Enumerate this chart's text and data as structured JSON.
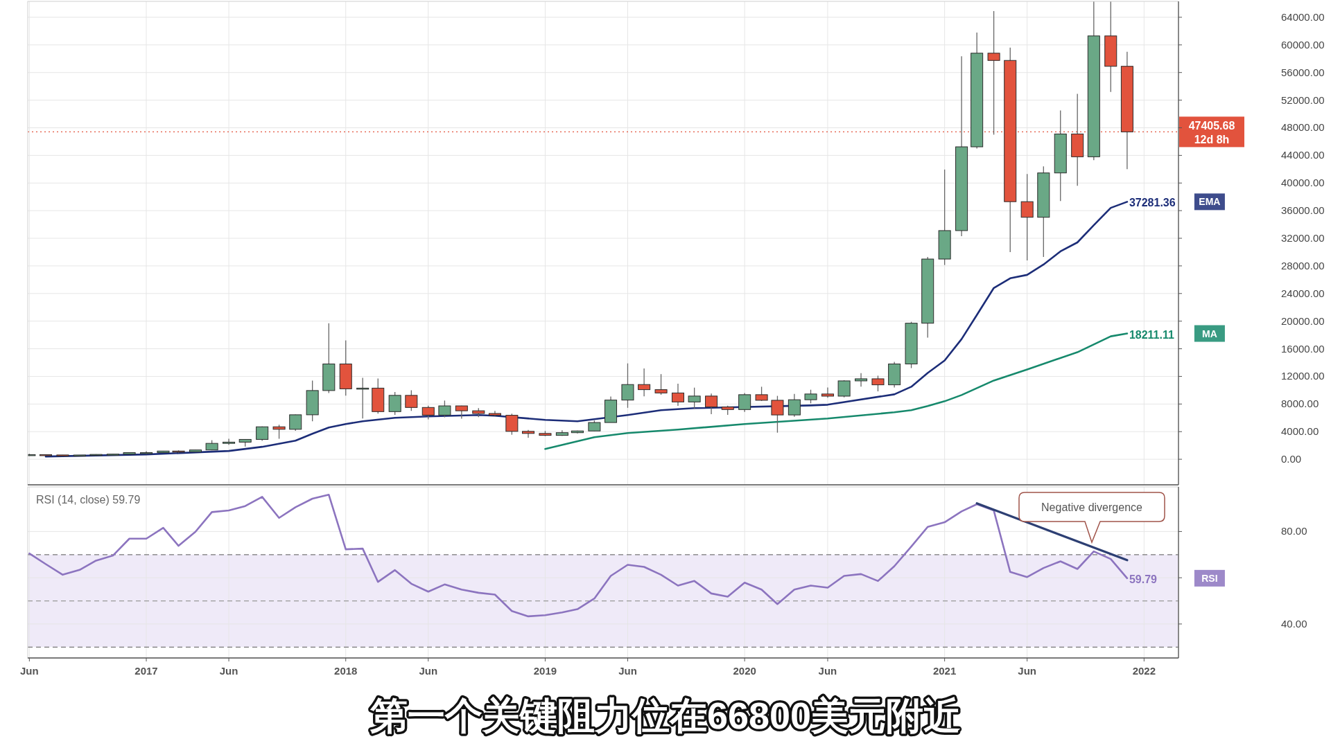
{
  "chart_data": [
    {
      "type": "candlestick",
      "xlim": [
        "2016-05-29",
        "2022-03-05"
      ],
      "ylim": [
        -3700,
        66300
      ],
      "grid": true,
      "tick_labels": "y",
      "xticks": [
        {
          "value": "2016-06",
          "label": null
        },
        {
          "value": "2017-01",
          "label": null
        },
        {
          "value": "2017-06",
          "label": null
        },
        {
          "value": "2018-01",
          "label": null
        },
        {
          "value": "2018-06",
          "label": null
        },
        {
          "value": "2019-01",
          "label": null
        },
        {
          "value": "2019-06",
          "label": null
        },
        {
          "value": "2020-01",
          "label": null
        },
        {
          "value": "2020-06",
          "label": null
        },
        {
          "value": "2021-01",
          "label": null
        },
        {
          "value": "2021-06",
          "label": null
        },
        {
          "value": "2022-01",
          "label": null
        }
      ],
      "yticks": [
        {
          "value": 0,
          "label": "0.00"
        },
        {
          "value": 4000,
          "label": "4000.00"
        },
        {
          "value": 8000,
          "label": "8000.00"
        },
        {
          "value": 12000,
          "label": "12000.00"
        },
        {
          "value": 16000,
          "label": "16000.00"
        },
        {
          "value": 20000,
          "label": "20000.00"
        },
        {
          "value": 24000,
          "label": "24000.00"
        },
        {
          "value": 28000,
          "label": "28000.00"
        },
        {
          "value": 32000,
          "label": "32000.00"
        },
        {
          "value": 36000,
          "label": "36000.00"
        },
        {
          "value": 40000,
          "label": "40000.00"
        },
        {
          "value": 44000,
          "label": "44000.00"
        },
        {
          "value": 48000,
          "label": "48000.00"
        },
        {
          "value": 52000,
          "label": "52000.00"
        },
        {
          "value": 56000,
          "label": "56000.00"
        },
        {
          "value": 60000,
          "label": "60000.00"
        },
        {
          "value": 64000,
          "label": "64000.00"
        }
      ],
      "x": [
        "2016-06",
        "2016-07",
        "2016-08",
        "2016-09",
        "2016-10",
        "2016-11",
        "2016-12",
        "2017-01",
        "2017-02",
        "2017-03",
        "2017-04",
        "2017-05",
        "2017-06",
        "2017-07",
        "2017-08",
        "2017-09",
        "2017-10",
        "2017-11",
        "2017-12",
        "2018-01",
        "2018-02",
        "2018-03",
        "2018-04",
        "2018-05",
        "2018-06",
        "2018-07",
        "2018-08",
        "2018-09",
        "2018-10",
        "2018-11",
        "2018-12",
        "2019-01",
        "2019-02",
        "2019-03",
        "2019-04",
        "2019-05",
        "2019-06",
        "2019-07",
        "2019-08",
        "2019-09",
        "2019-10",
        "2019-11",
        "2019-12",
        "2020-01",
        "2020-02",
        "2020-03",
        "2020-04",
        "2020-05",
        "2020-06",
        "2020-07",
        "2020-08",
        "2020-09",
        "2020-10",
        "2020-11",
        "2020-12",
        "2021-01",
        "2021-02",
        "2021-03",
        "2021-04",
        "2021-05",
        "2021-06",
        "2021-07",
        "2021-08",
        "2021-09",
        "2021-10",
        "2021-11",
        "2021-12"
      ],
      "ohlc": [
        [
          531,
          780,
          500,
          673
        ],
        [
          673,
          704,
          605,
          624
        ],
        [
          624,
          627,
          470,
          573
        ],
        [
          573,
          612,
          568,
          609
        ],
        [
          609,
          731,
          605,
          700
        ],
        [
          700,
          755,
          680,
          742
        ],
        [
          742,
          975,
          740,
          963
        ],
        [
          963,
          1153,
          750,
          970
        ],
        [
          970,
          1200,
          920,
          1190
        ],
        [
          1190,
          1290,
          890,
          1080
        ],
        [
          1080,
          1350,
          1060,
          1348
        ],
        [
          1348,
          2760,
          1300,
          2300
        ],
        [
          2300,
          2980,
          2100,
          2480
        ],
        [
          2480,
          2920,
          1830,
          2875
        ],
        [
          2875,
          4750,
          2670,
          4700
        ],
        [
          4700,
          5000,
          2970,
          4340
        ],
        [
          4340,
          6470,
          4110,
          6440
        ],
        [
          6440,
          11400,
          5500,
          9950
        ],
        [
          9950,
          19700,
          9600,
          13800
        ],
        [
          13800,
          17200,
          9200,
          10200
        ],
        [
          10200,
          11790,
          5900,
          10300
        ],
        [
          10300,
          11700,
          6600,
          6900
        ],
        [
          6900,
          9750,
          6430,
          9250
        ],
        [
          9250,
          9990,
          7000,
          7500
        ],
        [
          7500,
          7760,
          5780,
          6390
        ],
        [
          6390,
          8500,
          6070,
          7730
        ],
        [
          7730,
          7750,
          5880,
          7020
        ],
        [
          7020,
          7410,
          6100,
          6630
        ],
        [
          6630,
          7000,
          6200,
          6370
        ],
        [
          6370,
          6600,
          3550,
          4040
        ],
        [
          4040,
          4250,
          3130,
          3740
        ],
        [
          3740,
          4100,
          3350,
          3460
        ],
        [
          3460,
          4200,
          3400,
          3850
        ],
        [
          3850,
          4140,
          3750,
          4100
        ],
        [
          4100,
          5600,
          4080,
          5320
        ],
        [
          5320,
          9090,
          5320,
          8570
        ],
        [
          8570,
          13880,
          7450,
          10820
        ],
        [
          10820,
          13150,
          9100,
          10080
        ],
        [
          10080,
          12330,
          9330,
          9600
        ],
        [
          9600,
          10950,
          7730,
          8300
        ],
        [
          8300,
          10370,
          7300,
          9150
        ],
        [
          9150,
          9520,
          6520,
          7570
        ],
        [
          7570,
          7750,
          6430,
          7200
        ],
        [
          7200,
          9580,
          6860,
          9350
        ],
        [
          9350,
          10500,
          8440,
          8540
        ],
        [
          8540,
          9180,
          3850,
          6420
        ],
        [
          6420,
          9470,
          6150,
          8620
        ],
        [
          8620,
          10070,
          8100,
          9450
        ],
        [
          9450,
          10380,
          8900,
          9140
        ],
        [
          9140,
          11450,
          8960,
          11350
        ],
        [
          11350,
          12480,
          10520,
          11650
        ],
        [
          11650,
          12100,
          9830,
          10780
        ],
        [
          10780,
          14100,
          10400,
          13800
        ],
        [
          13800,
          19900,
          13200,
          19700
        ],
        [
          19700,
          29300,
          17600,
          28990
        ],
        [
          28990,
          41950,
          28130,
          33110
        ],
        [
          33110,
          58350,
          32300,
          45240
        ],
        [
          45240,
          61790,
          45000,
          58800
        ],
        [
          58800,
          64900,
          47000,
          57750
        ],
        [
          57750,
          59600,
          30000,
          37300
        ],
        [
          37300,
          41300,
          28800,
          35040
        ],
        [
          35040,
          42400,
          29300,
          41460
        ],
        [
          41460,
          50500,
          37400,
          47100
        ],
        [
          47100,
          52900,
          39600,
          43800
        ],
        [
          43800,
          66300,
          43300,
          61300
        ],
        [
          61300,
          66300,
          53200,
          56900
        ],
        [
          56900,
          59000,
          42000,
          47405.68
        ]
      ],
      "colors": [
        "#6aa886",
        "#e2533d",
        "#e2533d",
        "#6aa886",
        "#6aa886",
        "#6aa886",
        "#6aa886",
        "#6aa886",
        "#6aa886",
        "#e2533d",
        "#6aa886",
        "#6aa886",
        "#6aa886",
        "#6aa886",
        "#6aa886",
        "#e2533d",
        "#6aa886",
        "#6aa886",
        "#6aa886",
        "#e2533d",
        "#6aa886",
        "#e2533d",
        "#6aa886",
        "#e2533d",
        "#e2533d",
        "#6aa886",
        "#e2533d",
        "#e2533d",
        "#e2533d",
        "#e2533d",
        "#e2533d",
        "#e2533d",
        "#6aa886",
        "#6aa886",
        "#6aa886",
        "#6aa886",
        "#6aa886",
        "#e2533d",
        "#e2533d",
        "#e2533d",
        "#6aa886",
        "#e2533d",
        "#e2533d",
        "#6aa886",
        "#e2533d",
        "#e2533d",
        "#6aa886",
        "#6aa886",
        "#e2533d",
        "#6aa886",
        "#6aa886",
        "#e2533d",
        "#6aa886",
        "#6aa886",
        "#6aa886",
        "#6aa886",
        "#6aa886",
        "#6aa886",
        "#e2533d",
        "#e2533d",
        "#e2533d",
        "#6aa886",
        "#6aa886",
        "#e2533d",
        "#6aa886",
        "#e2533d",
        "#e2533d"
      ],
      "series": [
        {
          "name": "EMA",
          "type": "line",
          "color": "#1c2d78",
          "x": [
            "2016-07",
            "2017-01",
            "2017-06",
            "2017-08",
            "2017-10",
            "2017-11",
            "2017-12",
            "2018-01",
            "2018-02",
            "2018-04",
            "2018-06",
            "2018-09",
            "2018-10",
            "2019-01",
            "2019-03",
            "2019-04",
            "2019-06",
            "2019-08",
            "2019-10",
            "2020-05",
            "2020-06",
            "2020-10",
            "2020-11",
            "2020-12",
            "2021-01",
            "2021-02",
            "2021-03",
            "2021-04",
            "2021-05",
            "2021-06",
            "2021-07",
            "2021-08",
            "2021-09",
            "2021-10",
            "2021-11",
            "2021-12"
          ],
          "values": [
            400,
            700,
            1200,
            1800,
            2700,
            3700,
            4600,
            5100,
            5500,
            6000,
            6200,
            6400,
            6300,
            5700,
            5500,
            5800,
            6400,
            7100,
            7400,
            7800,
            7900,
            9400,
            10500,
            12500,
            14300,
            17400,
            20900,
            24800,
            26200,
            26700,
            28200,
            30100,
            31400,
            33900,
            36400,
            37281.36
          ],
          "value_labels": [
            null,
            null,
            null,
            null,
            null,
            null,
            null,
            null,
            null,
            null,
            null,
            null,
            null,
            null,
            null,
            null,
            null,
            null,
            null,
            null,
            null,
            null,
            null,
            null,
            null,
            null,
            null,
            null,
            null,
            null,
            null,
            null,
            null,
            null,
            null,
            "37281.36"
          ]
        },
        {
          "name": "MA",
          "type": "line",
          "color": "#16896c",
          "x": [
            "2019-01",
            "2019-04",
            "2019-06",
            "2019-09",
            "2020-01",
            "2020-06",
            "2020-10",
            "2020-11",
            "2020-12",
            "2021-01",
            "2021-02",
            "2021-04",
            "2021-06",
            "2021-09",
            "2021-11",
            "2021-12"
          ],
          "values": [
            1500,
            3200,
            3800,
            4300,
            5100,
            5900,
            6800,
            7100,
            7700,
            8400,
            9300,
            11400,
            13000,
            15500,
            17800,
            18211.11
          ],
          "value_labels": [
            null,
            null,
            null,
            null,
            null,
            null,
            null,
            null,
            null,
            null,
            null,
            null,
            null,
            null,
            null,
            "18211.11"
          ]
        }
      ],
      "ref_lines": [
        {
          "axis": "y",
          "value": 47405.68,
          "label": "47405.68\n12d 8h",
          "color": "#e2533d",
          "line_style": "dotted"
        }
      ]
    },
    {
      "type": "line",
      "title": "RSI (14, close)  59.79",
      "xlim": [
        "2016-05-29",
        "2022-03-05"
      ],
      "ylim": [
        25.3,
        99.3
      ],
      "grid": true,
      "xticks": [
        {
          "value": "2016-06",
          "label": "Jun"
        },
        {
          "value": "2017-01",
          "label": "2017"
        },
        {
          "value": "2017-06",
          "label": "Jun"
        },
        {
          "value": "2018-01",
          "label": "2018"
        },
        {
          "value": "2018-06",
          "label": "Jun"
        },
        {
          "value": "2019-01",
          "label": "2019"
        },
        {
          "value": "2019-06",
          "label": "Jun"
        },
        {
          "value": "2020-01",
          "label": "2020"
        },
        {
          "value": "2020-06",
          "label": "Jun"
        },
        {
          "value": "2021-01",
          "label": "2021"
        },
        {
          "value": "2021-06",
          "label": "Jun"
        },
        {
          "value": "2022-01",
          "label": "2022"
        }
      ],
      "yticks": [
        {
          "value": 40,
          "label": "40.00"
        },
        {
          "value": 60,
          "label": null
        },
        {
          "value": 80,
          "label": "80.00"
        }
      ],
      "bands": [
        {
          "axis": "y",
          "from": 30,
          "to": 70,
          "color": "#efeaf8"
        }
      ],
      "ref_lines": [
        {
          "axis": "y",
          "value": 70,
          "color": "#777777",
          "line_style": "dashed"
        },
        {
          "axis": "y",
          "value": 50,
          "color": "#999999",
          "line_style": "dashed"
        },
        {
          "axis": "y",
          "value": 30,
          "color": "#777777",
          "line_style": "dashed"
        }
      ],
      "series": [
        {
          "name": "RSI",
          "color": "#8c74bf",
          "x": [
            "2016-06",
            "2016-07",
            "2016-08",
            "2016-09",
            "2016-10",
            "2016-11",
            "2016-12",
            "2017-01",
            "2017-02",
            "2017-03",
            "2017-04",
            "2017-05",
            "2017-06",
            "2017-07",
            "2017-08",
            "2017-09",
            "2017-10",
            "2017-11",
            "2017-12",
            "2018-01",
            "2018-02",
            "2018-03",
            "2018-04",
            "2018-05",
            "2018-06",
            "2018-07",
            "2018-08",
            "2018-09",
            "2018-10",
            "2018-11",
            "2018-12",
            "2019-01",
            "2019-02",
            "2019-03",
            "2019-04",
            "2019-05",
            "2019-06",
            "2019-07",
            "2019-08",
            "2019-09",
            "2019-10",
            "2019-11",
            "2019-12",
            "2020-01",
            "2020-02",
            "2020-03",
            "2020-04",
            "2020-05",
            "2020-06",
            "2020-07",
            "2020-08",
            "2020-09",
            "2020-10",
            "2020-11",
            "2020-12",
            "2021-01",
            "2021-02",
            "2021-03",
            "2021-04",
            "2021-05",
            "2021-06",
            "2021-07",
            "2021-08",
            "2021-09",
            "2021-10",
            "2021-11",
            "2021-12"
          ],
          "values": [
            70.5,
            65.9,
            61.3,
            63.4,
            67.4,
            69.6,
            76.9,
            76.9,
            81.6,
            73.8,
            79.9,
            88.4,
            89.1,
            91,
            95,
            85.9,
            90.5,
            94.2,
            95.9,
            72.3,
            72.6,
            58.2,
            63.3,
            57.4,
            54,
            57.1,
            54.9,
            53.5,
            52.7,
            45.6,
            43.3,
            43.8,
            45,
            46.4,
            51,
            60.8,
            65.6,
            64.7,
            61.3,
            56.6,
            58.6,
            53.2,
            51.8,
            57.9,
            54.9,
            48.6,
            54.9,
            56.6,
            55.7,
            60.8,
            61.6,
            58.6,
            65,
            73.5,
            82,
            84,
            88.7,
            91.8,
            89.1,
            62.5,
            60.3,
            64.2,
            67.1,
            63.8,
            71.4,
            68.1,
            59.79
          ],
          "value_labels": [
            null,
            null,
            null,
            null,
            null,
            null,
            null,
            null,
            null,
            null,
            null,
            null,
            null,
            null,
            null,
            null,
            null,
            null,
            null,
            null,
            null,
            null,
            null,
            null,
            null,
            null,
            null,
            null,
            null,
            null,
            null,
            null,
            null,
            null,
            null,
            null,
            null,
            null,
            null,
            null,
            null,
            null,
            null,
            null,
            null,
            null,
            null,
            null,
            null,
            null,
            null,
            null,
            null,
            null,
            null,
            null,
            null,
            null,
            null,
            null,
            null,
            null,
            null,
            null,
            null,
            null,
            "59.79"
          ]
        },
        {
          "type": "line",
          "color": "#2d3f73",
          "x": [
            "2021-03",
            "2021-12"
          ],
          "values": [
            92.2,
            67.6
          ]
        }
      ],
      "annotations": [
        "Negative divergence",
        "第一个关键阻力位在66800美元附近"
      ]
    }
  ]
}
